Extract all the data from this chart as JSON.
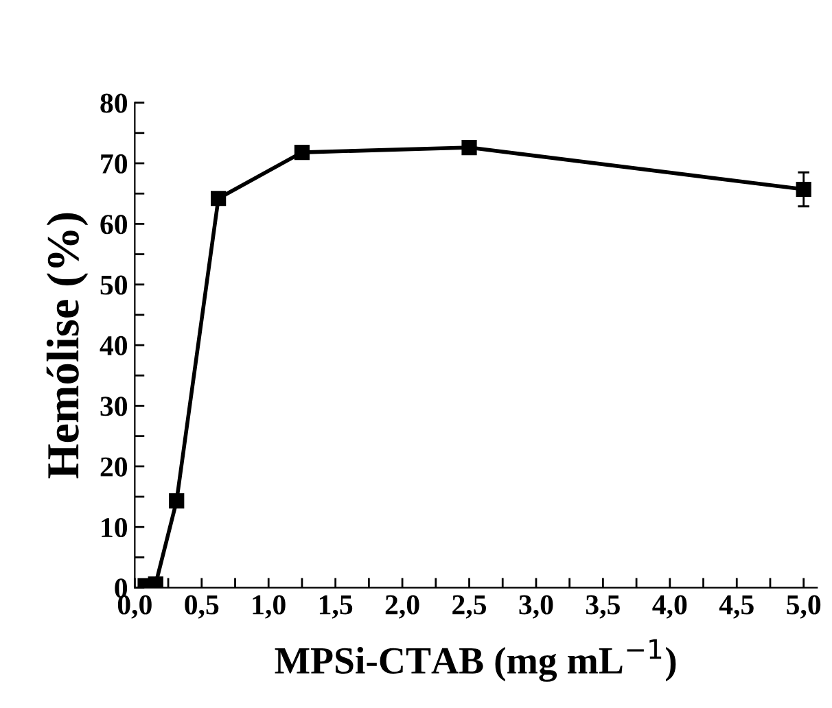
{
  "chart_data": {
    "type": "line",
    "xlabel": "MPSi-CTAB (mg mL$^{−1}$)",
    "ylabel": "Hemólise (%)",
    "x": [
      0.078,
      0.156,
      0.3125,
      0.625,
      1.25,
      2.5,
      5.0
    ],
    "series": [
      {
        "color": "#000000",
        "values": [
          0.3,
          0.6,
          14.3,
          64.2,
          71.8,
          72.6,
          65.7
        ],
        "errors": [
          null,
          null,
          null,
          null,
          null,
          null,
          2.8
        ]
      }
    ],
    "marker": "square",
    "line_style": "solid",
    "grid": false,
    "xlim": [
      0,
      5.1
    ],
    "ylim": [
      0,
      80
    ],
    "xticks": [
      {
        "value": 0.0,
        "label": "0,0"
      },
      {
        "value": 0.25,
        "label": null
      },
      {
        "value": 0.5,
        "label": "0,5"
      },
      {
        "value": 0.75,
        "label": null
      },
      {
        "value": 1.0,
        "label": "1,0"
      },
      {
        "value": 1.25,
        "label": null
      },
      {
        "value": 1.5,
        "label": "1,5"
      },
      {
        "value": 1.75,
        "label": null
      },
      {
        "value": 2.0,
        "label": "2,0"
      },
      {
        "value": 2.25,
        "label": null
      },
      {
        "value": 2.5,
        "label": "2,5"
      },
      {
        "value": 2.75,
        "label": null
      },
      {
        "value": 3.0,
        "label": "3,0"
      },
      {
        "value": 3.25,
        "label": null
      },
      {
        "value": 3.5,
        "label": "3,5"
      },
      {
        "value": 3.75,
        "label": null
      },
      {
        "value": 4.0,
        "label": "4,0"
      },
      {
        "value": 4.25,
        "label": null
      },
      {
        "value": 4.5,
        "label": "4,5"
      },
      {
        "value": 4.75,
        "label": null
      },
      {
        "value": 5.0,
        "label": "5,0"
      }
    ],
    "yticks": [
      0,
      {
        "value": 5,
        "label": null
      },
      10,
      {
        "value": 15,
        "label": null
      },
      20,
      {
        "value": 25,
        "label": null
      },
      30,
      {
        "value": 35,
        "label": null
      },
      40,
      {
        "value": 45,
        "label": null
      },
      50,
      {
        "value": 55,
        "label": null
      },
      60,
      {
        "value": 65,
        "label": null
      },
      70,
      {
        "value": 75,
        "label": null
      },
      80
    ]
  }
}
